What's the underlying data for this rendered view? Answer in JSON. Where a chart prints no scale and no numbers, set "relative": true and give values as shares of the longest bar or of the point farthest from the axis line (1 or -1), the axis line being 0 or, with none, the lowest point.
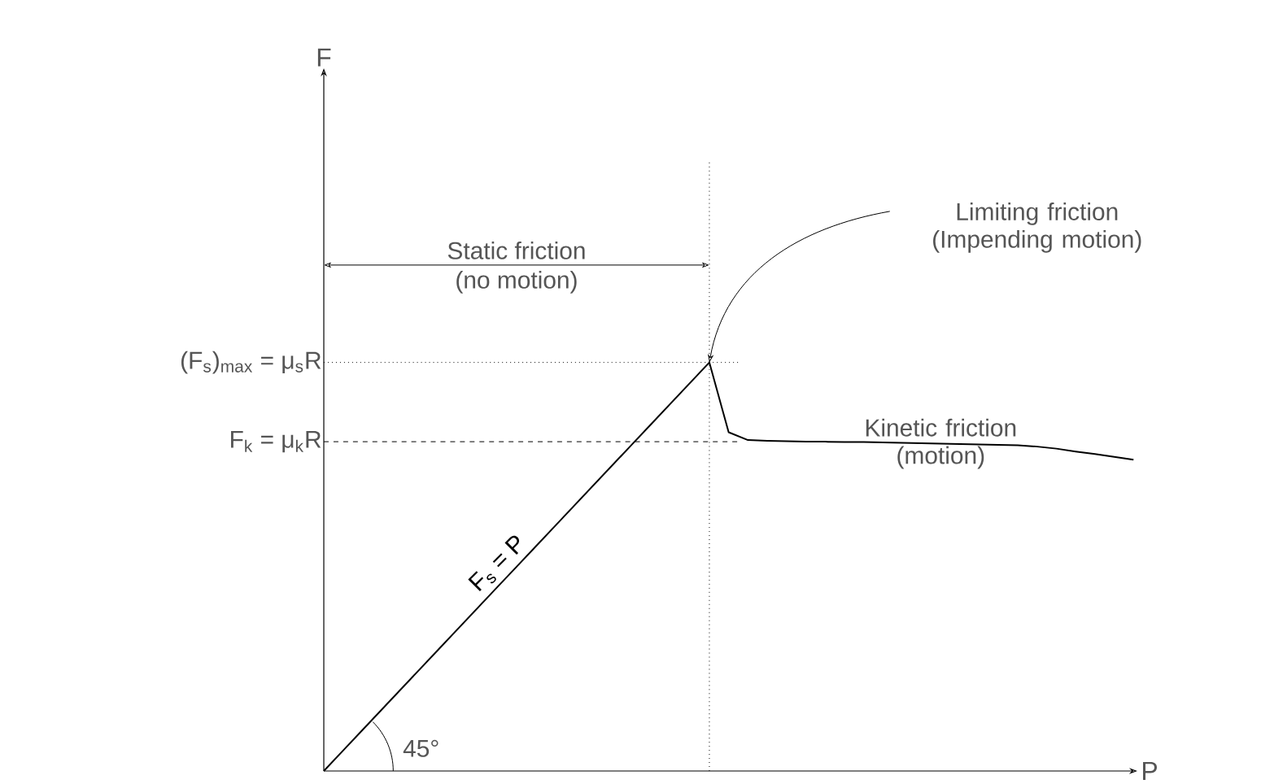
{
  "chart_data": {
    "type": "line",
    "relative": true,
    "xlabel": "P",
    "categories": [
      null,
      null,
      null,
      null,
      null,
      null,
      null,
      null,
      null,
      null,
      null,
      null,
      null,
      null,
      null,
      null,
      null,
      null,
      null,
      null,
      null,
      null,
      null,
      null,
      null,
      null,
      null,
      null,
      null,
      null,
      null,
      null,
      null,
      null,
      null,
      null,
      null,
      null,
      null,
      null,
      null,
      null,
      null
    ],
    "series": [
      {
        "name": "F$_{s}$ = P",
        "color": "#000000",
        "values": [
          0,
          0.05,
          0.1,
          0.15,
          0.2,
          0.25,
          0.3,
          0.35,
          0.4,
          0.45,
          0.5,
          0.55,
          0.6,
          0.65,
          0.7,
          0.75,
          0.8,
          0.85,
          0.9,
          0.95,
          1.0,
          0.829,
          0.81,
          0.808,
          0.807,
          0.806,
          0.806,
          0.805,
          0.805,
          0.804,
          0.803,
          0.802,
          0.801,
          0.8,
          0.799,
          0.798,
          0.797,
          0.794,
          0.789,
          0.782,
          0.776,
          0.769,
          0.762
        ]
      }
    ],
    "ref_lines": [
      {
        "axis": "y",
        "value": 1.0,
        "label": "(F$_{s}$)$_{max}$ = μ$_{s}$R",
        "line_style": "dotted"
      },
      {
        "axis": "y",
        "value": 0.806,
        "label": "F$_{k}$ = μ$_{k}$R",
        "line_style": "dashed"
      }
    ],
    "annotations": [
      "Static friction",
      "(no motion)",
      "Limiting friction (Impending motion)",
      "Kinetic friction (motion)",
      "45°",
      "F"
    ]
  }
}
